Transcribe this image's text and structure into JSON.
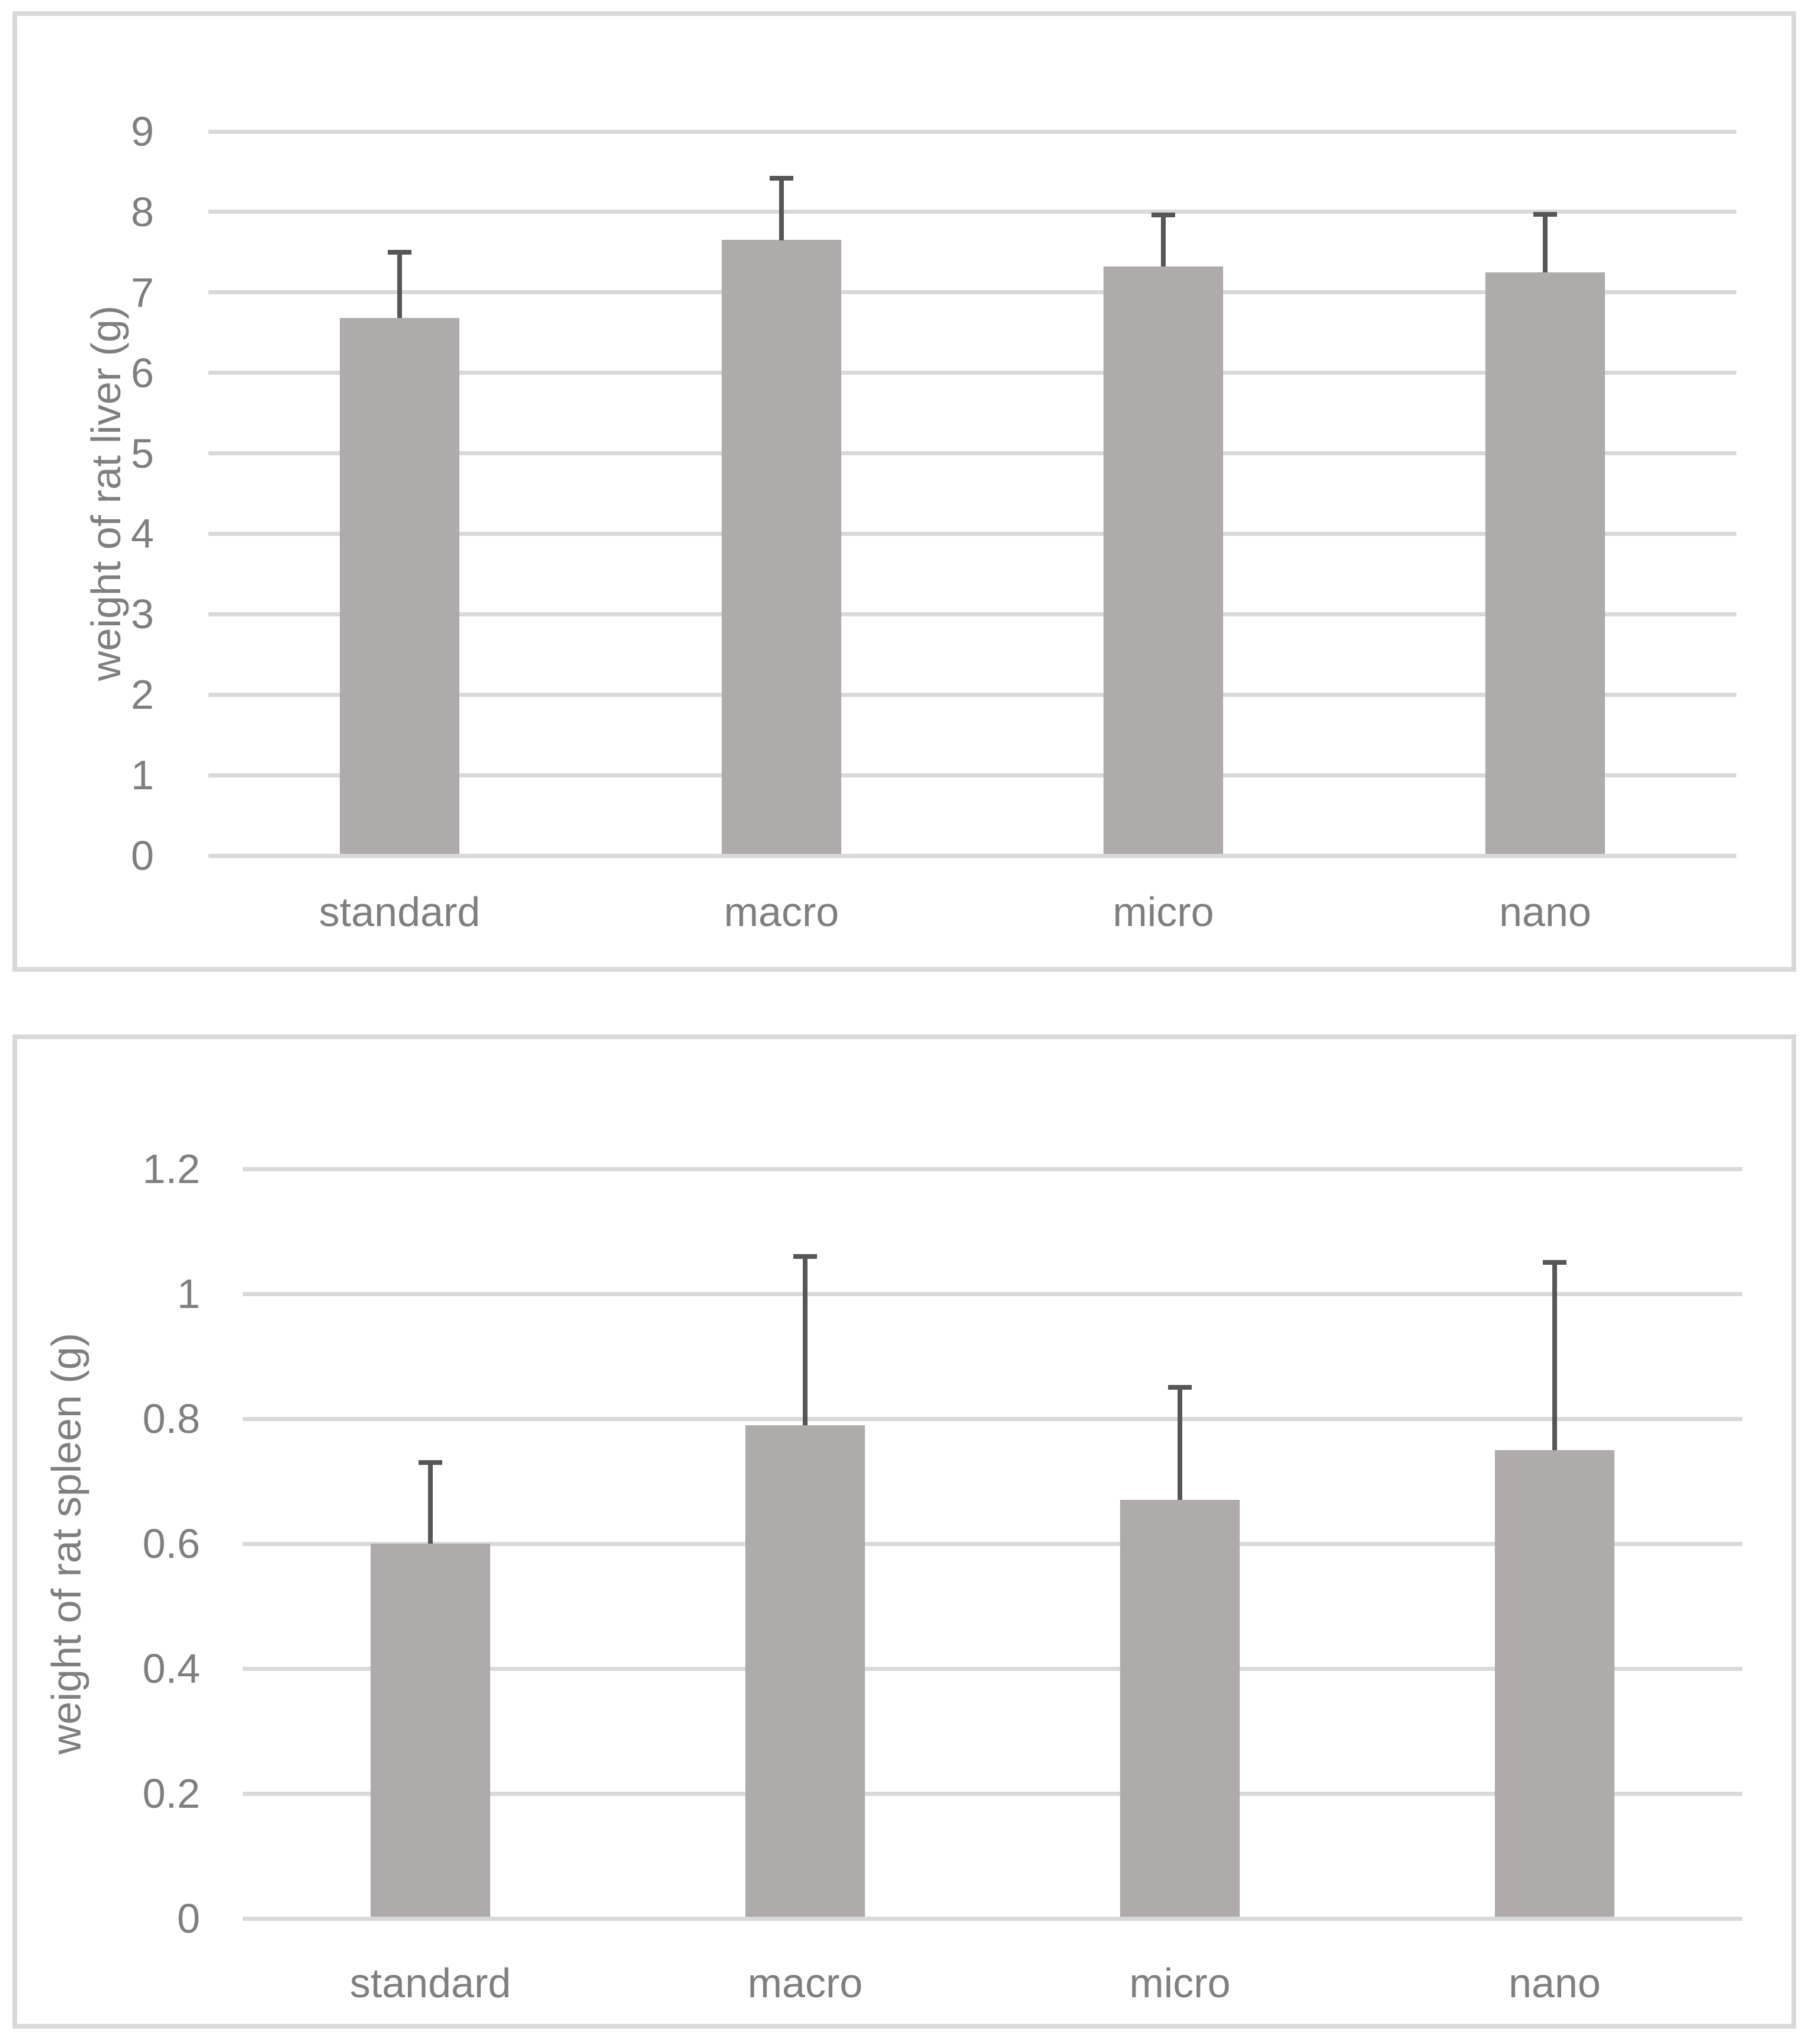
{
  "colors": {
    "bar_fill": "#afabab",
    "error_bar": "#565656",
    "gridline": "#d9d9d9",
    "panel_border": "#d9d9d9",
    "text": "#7f7f7f",
    "background": "#ffffff"
  },
  "chart_data": [
    {
      "type": "bar",
      "title": "",
      "xlabel": "",
      "ylabel": "weight of rat liver (g)",
      "categories": [
        "standard",
        "macro",
        "micro",
        "nano"
      ],
      "values": [
        6.68,
        7.65,
        7.32,
        7.25
      ],
      "error_up": [
        0.82,
        0.77,
        0.64,
        0.72
      ],
      "ylim": [
        0,
        9
      ],
      "yticks": [
        "0",
        "1",
        "2",
        "3",
        "4",
        "5",
        "6",
        "7",
        "8",
        "9"
      ],
      "grid": true,
      "legend": "none",
      "bar_color": "#afabab"
    },
    {
      "type": "bar",
      "title": "",
      "xlabel": "",
      "ylabel": "weight of rat spleen (g)",
      "categories": [
        "standard",
        "macro",
        "micro",
        "nano"
      ],
      "values": [
        0.6,
        0.79,
        0.67,
        0.75
      ],
      "error_up": [
        0.13,
        0.27,
        0.18,
        0.3
      ],
      "ylim": [
        0,
        1.2
      ],
      "yticks": [
        "0",
        "0.2",
        "0.4",
        "0.6",
        "0.8",
        "1",
        "1.2"
      ],
      "grid": true,
      "legend": "none",
      "bar_color": "#afabab"
    }
  ]
}
